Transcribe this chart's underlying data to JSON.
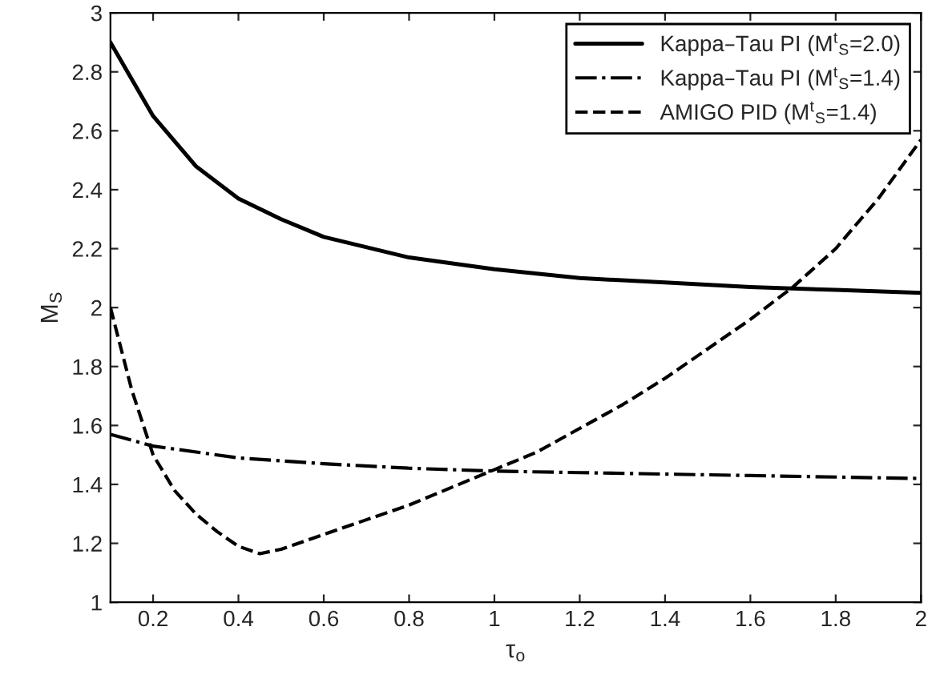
{
  "chart_data": {
    "type": "line",
    "xlabel": "τ$_{o}$",
    "ylabel": "M$_{S}$",
    "xlim": [
      0.1,
      2
    ],
    "ylim": [
      1,
      3
    ],
    "xticks": [
      0.2,
      0.4,
      0.6,
      0.8,
      1,
      1.2,
      1.4,
      1.6,
      1.8,
      2
    ],
    "yticks": [
      1,
      1.2,
      1.4,
      1.6,
      1.8,
      2,
      2.2,
      2.4,
      2.6,
      2.8,
      3
    ],
    "legend": "top right",
    "grid": false,
    "marker": "none",
    "series": [
      {
        "name": "Kappa–Tau PI (M$^{t}$$_{S}$=2.0)",
        "color": "#000000",
        "line_style": "solid",
        "x": [
          0.1,
          0.2,
          0.3,
          0.4,
          0.5,
          0.6,
          0.8,
          1.0,
          1.2,
          1.4,
          1.6,
          1.8,
          2.0
        ],
        "values": [
          2.9,
          2.65,
          2.48,
          2.37,
          2.3,
          2.24,
          2.17,
          2.13,
          2.1,
          2.085,
          2.07,
          2.06,
          2.05
        ]
      },
      {
        "name": "Kappa–Tau PI (M$^{t}$$_{S}$=1.4)",
        "color": "#000000",
        "line_style": "dashdot",
        "x": [
          0.1,
          0.2,
          0.4,
          0.6,
          0.8,
          1.0,
          1.2,
          1.4,
          1.6,
          1.8,
          2.0
        ],
        "values": [
          1.57,
          1.53,
          1.49,
          1.47,
          1.455,
          1.445,
          1.44,
          1.435,
          1.43,
          1.425,
          1.42
        ]
      },
      {
        "name": "AMIGO PID (M$^{t}$$_{S}$=1.4)",
        "color": "#000000",
        "line_style": "dashed",
        "x": [
          0.1,
          0.15,
          0.2,
          0.25,
          0.3,
          0.35,
          0.4,
          0.45,
          0.5,
          0.6,
          0.7,
          0.8,
          0.9,
          1.0,
          1.1,
          1.2,
          1.3,
          1.4,
          1.5,
          1.6,
          1.7,
          1.8,
          1.9,
          2.0
        ],
        "values": [
          2.0,
          1.72,
          1.5,
          1.38,
          1.3,
          1.24,
          1.19,
          1.165,
          1.18,
          1.23,
          1.28,
          1.33,
          1.39,
          1.45,
          1.51,
          1.59,
          1.67,
          1.76,
          1.86,
          1.96,
          2.07,
          2.2,
          2.37,
          2.57
        ]
      }
    ]
  }
}
